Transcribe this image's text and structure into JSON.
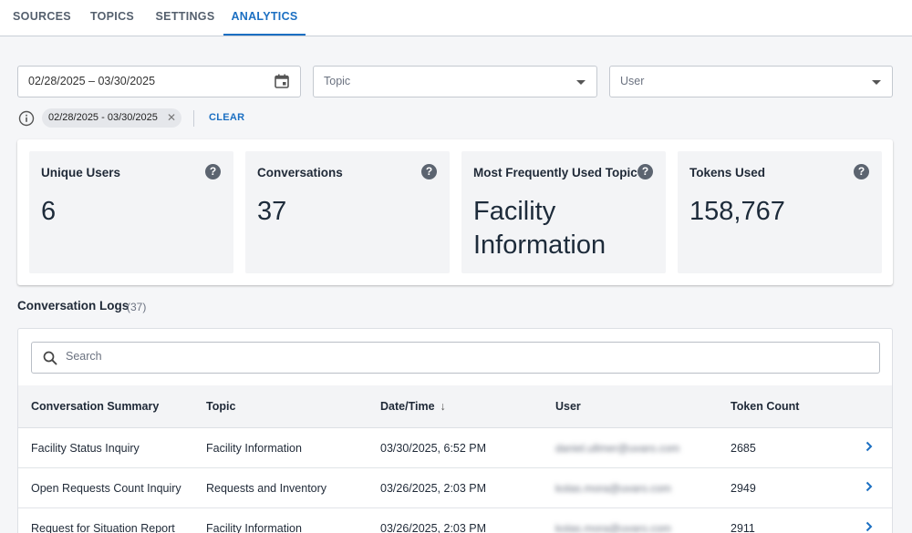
{
  "tabs": [
    {
      "label": "SOURCES"
    },
    {
      "label": "TOPICS"
    },
    {
      "label": "SETTINGS"
    },
    {
      "label": "ANALYTICS"
    }
  ],
  "filters": {
    "date_range": "02/28/2025 – 03/30/2025",
    "topic_placeholder": "Topic",
    "user_placeholder": "User",
    "active_chip": "02/28/2025 - 03/30/2025",
    "clear_label": "CLEAR"
  },
  "stats": [
    {
      "label": "Unique Users",
      "value": "6"
    },
    {
      "label": "Conversations",
      "value": "37"
    },
    {
      "label": "Most Frequently Used Topic",
      "value": "Facility Information"
    },
    {
      "label": "Tokens Used",
      "value": "158,767"
    }
  ],
  "help_glyph": "?",
  "logs": {
    "title": "Conversation Logs",
    "count": "(37)",
    "search_placeholder": "Search",
    "columns": [
      "Conversation Summary",
      "Topic",
      "Date/Time",
      "User",
      "Token Count"
    ],
    "rows": [
      {
        "summary": "Facility Status Inquiry",
        "topic": "Facility Information",
        "datetime": "03/30/2025, 6:52 PM",
        "user": "daniel.ullmer@uvaro.com",
        "tokens": "2685"
      },
      {
        "summary": "Open Requests Count Inquiry",
        "topic": "Requests and Inventory",
        "datetime": "03/26/2025, 2:03 PM",
        "user": "kolas.mora@uvaro.com",
        "tokens": "2949"
      },
      {
        "summary": "Request for Situation Report",
        "topic": "Facility Information",
        "datetime": "03/26/2025, 2:03 PM",
        "user": "kolas.mora@uvaro.com",
        "tokens": "2911"
      }
    ]
  },
  "colors": {
    "accent": "#1b6fc2",
    "stat_card_bg": "#f3f4f6"
  },
  "icons": [
    "calendar-icon",
    "info-icon",
    "help-icon",
    "search-icon",
    "chevron-right-icon",
    "sort-arrow-down-icon",
    "close-icon",
    "dropdown-caret-icon"
  ]
}
